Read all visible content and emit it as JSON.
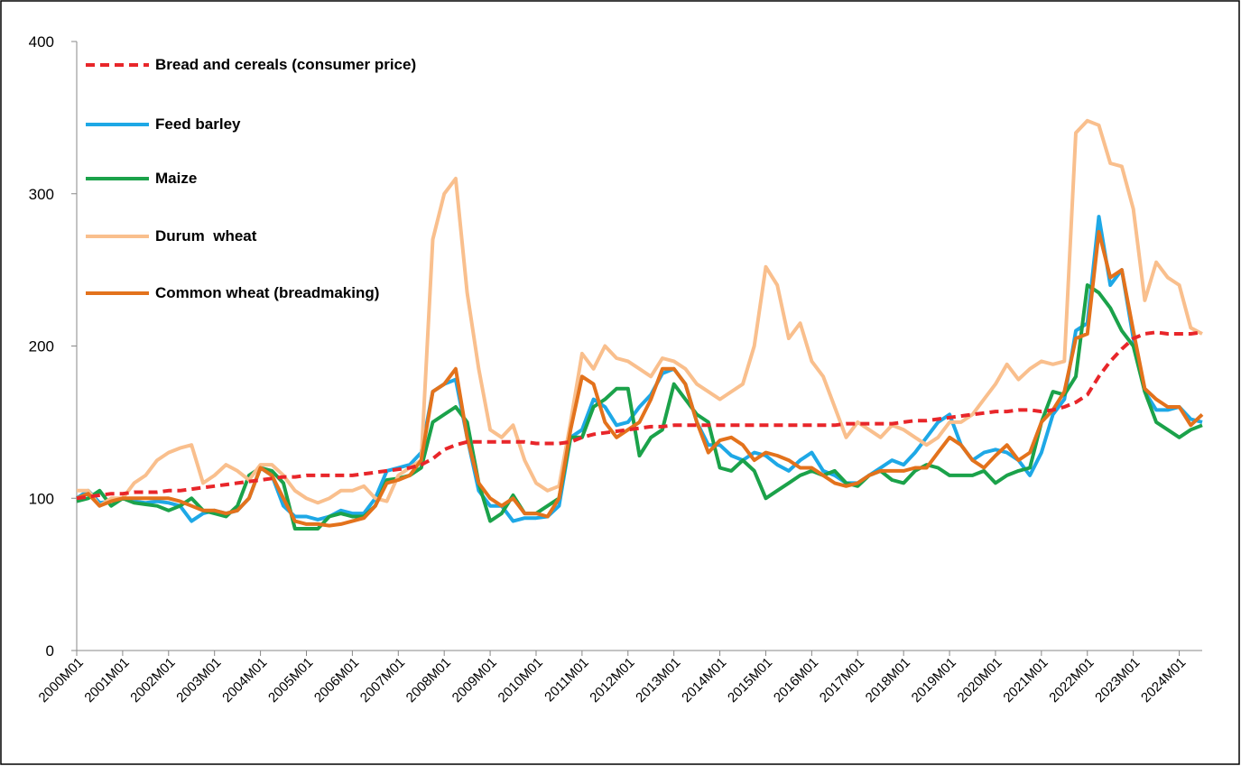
{
  "chart_data": {
    "type": "line",
    "categories": [
      "2000M01",
      null,
      null,
      null,
      "2001M01",
      null,
      null,
      null,
      "2002M01",
      null,
      null,
      null,
      "2003M01",
      null,
      null,
      null,
      "2004M01",
      null,
      null,
      null,
      "2005M01",
      null,
      null,
      null,
      "2006M01",
      null,
      null,
      null,
      "2007M01",
      null,
      null,
      null,
      "2008M01",
      null,
      null,
      null,
      "2009M01",
      null,
      null,
      null,
      "2010M01",
      null,
      null,
      null,
      "2011M01",
      null,
      null,
      null,
      "2012M01",
      null,
      null,
      null,
      "2013M01",
      null,
      null,
      null,
      "2014M01",
      null,
      null,
      null,
      "2015M01",
      null,
      null,
      null,
      "2016M01",
      null,
      null,
      null,
      "2017M01",
      null,
      null,
      null,
      "2018M01",
      null,
      null,
      null,
      "2019M01",
      null,
      null,
      null,
      "2020M01",
      null,
      null,
      null,
      "2021M01",
      null,
      null,
      null,
      "2022M01",
      null,
      null,
      null,
      "2023M01",
      null,
      null,
      null,
      "2024M01",
      null,
      null
    ],
    "series": [
      {
        "name": "Bread and cereals (consumer price)",
        "color": "#e8262a",
        "line_style": "dashed",
        "values": [
          100,
          101,
          102,
          103,
          103,
          104,
          104,
          104,
          105,
          105,
          106,
          107,
          108,
          109,
          110,
          111,
          112,
          113,
          114,
          114,
          115,
          115,
          115,
          115,
          115,
          116,
          117,
          118,
          119,
          120,
          122,
          126,
          132,
          135,
          137,
          137,
          137,
          137,
          137,
          137,
          136,
          136,
          136,
          137,
          140,
          142,
          143,
          144,
          145,
          146,
          147,
          147,
          148,
          148,
          148,
          148,
          148,
          148,
          148,
          148,
          148,
          148,
          148,
          148,
          148,
          148,
          148,
          149,
          149,
          149,
          149,
          149,
          150,
          151,
          151,
          152,
          153,
          154,
          155,
          156,
          157,
          157,
          158,
          158,
          157,
          158,
          160,
          163,
          168,
          180,
          190,
          198,
          205,
          208,
          209,
          208,
          208,
          208,
          209
        ]
      },
      {
        "name": "Feed barley",
        "color": "#1ea8e6",
        "line_style": "solid",
        "values": [
          100,
          105,
          97,
          98,
          100,
          98,
          97,
          98,
          97,
          95,
          85,
          90,
          92,
          90,
          92,
          100,
          120,
          115,
          95,
          88,
          88,
          86,
          88,
          92,
          90,
          90,
          100,
          118,
          120,
          122,
          130,
          170,
          175,
          178,
          140,
          105,
          95,
          95,
          85,
          87,
          87,
          88,
          95,
          140,
          145,
          165,
          160,
          148,
          150,
          160,
          168,
          182,
          185,
          175,
          150,
          135,
          135,
          128,
          125,
          130,
          128,
          122,
          118,
          125,
          130,
          118,
          115,
          110,
          110,
          115,
          120,
          125,
          122,
          130,
          140,
          150,
          155,
          135,
          125,
          130,
          132,
          130,
          125,
          115,
          130,
          155,
          165,
          210,
          215,
          285,
          240,
          250,
          205,
          170,
          158,
          158,
          160,
          152,
          150
        ]
      },
      {
        "name": "Maize",
        "color": "#1ba24a",
        "line_style": "solid",
        "values": [
          98,
          100,
          105,
          95,
          100,
          97,
          96,
          95,
          92,
          95,
          100,
          92,
          90,
          88,
          95,
          115,
          120,
          118,
          110,
          80,
          80,
          80,
          88,
          90,
          88,
          88,
          95,
          112,
          113,
          115,
          120,
          150,
          155,
          160,
          150,
          110,
          85,
          90,
          102,
          90,
          90,
          95,
          100,
          140,
          140,
          160,
          165,
          172,
          172,
          128,
          140,
          145,
          175,
          165,
          155,
          150,
          120,
          118,
          125,
          118,
          100,
          105,
          110,
          115,
          118,
          115,
          118,
          110,
          108,
          115,
          118,
          112,
          110,
          118,
          122,
          120,
          115,
          115,
          115,
          118,
          110,
          115,
          118,
          120,
          150,
          170,
          168,
          180,
          240,
          235,
          225,
          210,
          200,
          170,
          150,
          145,
          140,
          145,
          148
        ]
      },
      {
        "name": "Durum  wheat",
        "color": "#f9bf8d",
        "line_style": "solid",
        "values": [
          105,
          105,
          95,
          100,
          100,
          110,
          115,
          125,
          130,
          133,
          135,
          110,
          115,
          122,
          118,
          112,
          122,
          122,
          115,
          105,
          100,
          97,
          100,
          105,
          105,
          108,
          100,
          98,
          115,
          120,
          125,
          270,
          300,
          310,
          235,
          185,
          145,
          140,
          148,
          125,
          110,
          105,
          108,
          150,
          195,
          185,
          200,
          192,
          190,
          185,
          180,
          192,
          190,
          185,
          175,
          170,
          165,
          170,
          175,
          200,
          252,
          240,
          205,
          215,
          190,
          180,
          160,
          140,
          150,
          145,
          140,
          148,
          145,
          140,
          135,
          140,
          150,
          150,
          155,
          165,
          175,
          188,
          178,
          185,
          190,
          188,
          190,
          340,
          348,
          345,
          320,
          318,
          290,
          230,
          255,
          245,
          240,
          212,
          208
        ]
      },
      {
        "name": "Common wheat (breadmaking)",
        "color": "#e3721c",
        "line_style": "solid",
        "values": [
          100,
          103,
          95,
          98,
          100,
          100,
          100,
          100,
          100,
          98,
          95,
          92,
          92,
          90,
          92,
          100,
          120,
          115,
          100,
          85,
          83,
          83,
          82,
          83,
          85,
          87,
          95,
          110,
          112,
          115,
          125,
          170,
          175,
          185,
          140,
          110,
          100,
          95,
          100,
          90,
          90,
          88,
          100,
          145,
          180,
          175,
          150,
          140,
          145,
          150,
          165,
          185,
          185,
          175,
          150,
          130,
          138,
          140,
          135,
          125,
          130,
          128,
          125,
          120,
          120,
          115,
          110,
          108,
          110,
          115,
          118,
          118,
          118,
          120,
          120,
          130,
          140,
          135,
          125,
          120,
          128,
          135,
          125,
          130,
          150,
          158,
          170,
          205,
          208,
          275,
          245,
          250,
          210,
          172,
          165,
          160,
          160,
          148,
          155
        ]
      }
    ],
    "ylim": [
      0,
      400
    ],
    "yticks": [
      0,
      100,
      200,
      300,
      400
    ],
    "grid": false
  }
}
